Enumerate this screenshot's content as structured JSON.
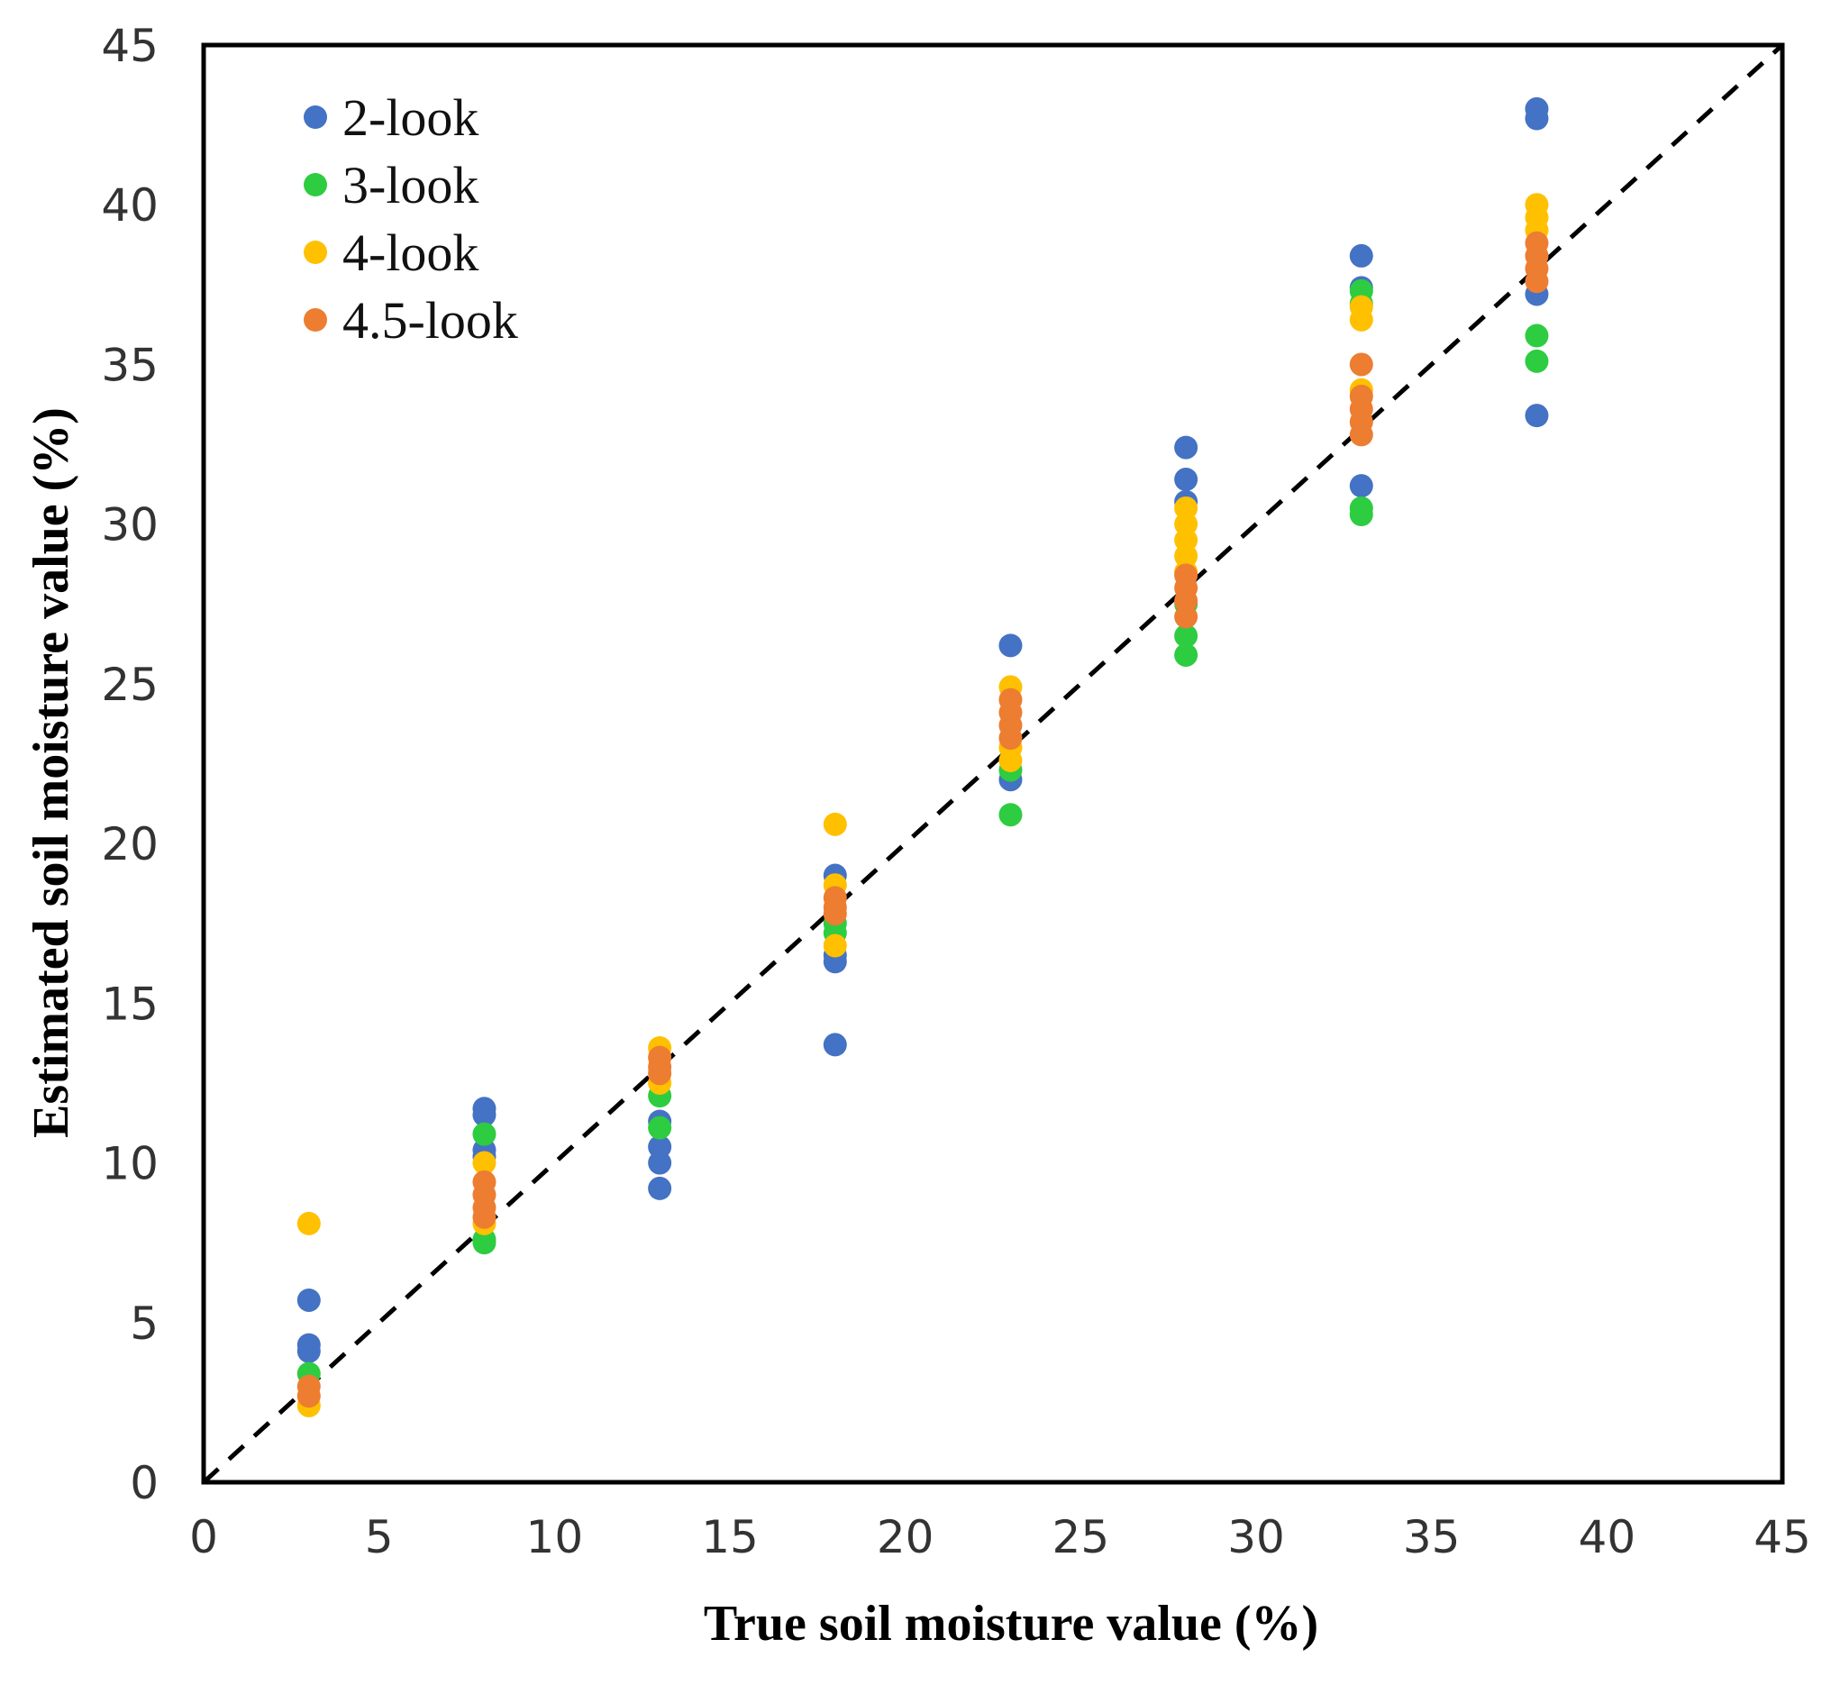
{
  "chart_data": {
    "type": "scatter",
    "title": "",
    "xlabel": "True soil moisture value (%)",
    "ylabel": "Estimated soil moisture value (%)",
    "xlim": [
      0,
      45
    ],
    "ylim": [
      0,
      45
    ],
    "xticks": [
      "0",
      "5",
      "10",
      "15",
      "20",
      "25",
      "30",
      "35",
      "40",
      "45"
    ],
    "yticks": [
      "0",
      "5",
      "10",
      "15",
      "20",
      "25",
      "30",
      "35",
      "40",
      "45"
    ],
    "grid": false,
    "legend_position": "top-left",
    "reference_line": {
      "style": "dashed",
      "color": "#000000",
      "from": [
        0,
        0
      ],
      "to": [
        45,
        45
      ]
    },
    "series": [
      {
        "name": "2-look",
        "color": "#4472C4",
        "points": [
          [
            3,
            5.7
          ],
          [
            3,
            4.3
          ],
          [
            3,
            4.1
          ],
          [
            8,
            11.7
          ],
          [
            8,
            11.5
          ],
          [
            8,
            10.4
          ],
          [
            8,
            10.2
          ],
          [
            13,
            11.3
          ],
          [
            13,
            10.5
          ],
          [
            13,
            10.0
          ],
          [
            13,
            9.2
          ],
          [
            18,
            19.0
          ],
          [
            18,
            16.5
          ],
          [
            18,
            16.3
          ],
          [
            18,
            13.7
          ],
          [
            23,
            26.2
          ],
          [
            23,
            22.0
          ],
          [
            28,
            32.4
          ],
          [
            28,
            31.4
          ],
          [
            28,
            30.7
          ],
          [
            33,
            38.4
          ],
          [
            33,
            37.4
          ],
          [
            33,
            31.2
          ],
          [
            38,
            43.0
          ],
          [
            38,
            42.7
          ],
          [
            38,
            37.2
          ],
          [
            38,
            33.4
          ]
        ]
      },
      {
        "name": "3-look",
        "color": "#2ECC40",
        "points": [
          [
            3,
            3.4
          ],
          [
            8,
            10.9
          ],
          [
            8,
            7.6
          ],
          [
            8,
            7.5
          ],
          [
            13,
            12.1
          ],
          [
            13,
            11.1
          ],
          [
            18,
            17.5
          ],
          [
            18,
            17.2
          ],
          [
            23,
            22.3
          ],
          [
            23,
            20.9
          ],
          [
            28,
            27.5
          ],
          [
            28,
            26.5
          ],
          [
            28,
            25.9
          ],
          [
            33,
            37.3
          ],
          [
            33,
            36.9
          ],
          [
            33,
            30.5
          ],
          [
            33,
            30.3
          ],
          [
            38,
            35.9
          ],
          [
            38,
            35.1
          ]
        ]
      },
      {
        "name": "4-look",
        "color": "#FFC000",
        "points": [
          [
            3,
            8.1
          ],
          [
            3,
            2.4
          ],
          [
            8,
            10.0
          ],
          [
            8,
            8.1
          ],
          [
            13,
            13.6
          ],
          [
            13,
            12.5
          ],
          [
            18,
            20.6
          ],
          [
            18,
            18.7
          ],
          [
            18,
            16.8
          ],
          [
            23,
            24.9
          ],
          [
            23,
            23.0
          ],
          [
            23,
            22.6
          ],
          [
            28,
            30.5
          ],
          [
            28,
            30.0
          ],
          [
            28,
            29.5
          ],
          [
            28,
            29.0
          ],
          [
            28,
            28.5
          ],
          [
            33,
            36.8
          ],
          [
            33,
            36.4
          ],
          [
            33,
            34.2
          ],
          [
            38,
            40.0
          ],
          [
            38,
            39.6
          ],
          [
            38,
            39.2
          ]
        ]
      },
      {
        "name": "4.5-look",
        "color": "#ED7D31",
        "points": [
          [
            3,
            3.0
          ],
          [
            3,
            2.7
          ],
          [
            8,
            9.4
          ],
          [
            8,
            9.0
          ],
          [
            8,
            8.6
          ],
          [
            8,
            8.3
          ],
          [
            13,
            13.3
          ],
          [
            13,
            13.0
          ],
          [
            13,
            12.8
          ],
          [
            18,
            18.3
          ],
          [
            18,
            18.0
          ],
          [
            18,
            17.8
          ],
          [
            23,
            24.5
          ],
          [
            23,
            24.1
          ],
          [
            23,
            23.7
          ],
          [
            23,
            23.3
          ],
          [
            28,
            28.4
          ],
          [
            28,
            28.0
          ],
          [
            28,
            27.6
          ],
          [
            28,
            27.1
          ],
          [
            33,
            35.0
          ],
          [
            33,
            34.0
          ],
          [
            33,
            33.6
          ],
          [
            33,
            33.2
          ],
          [
            33,
            32.8
          ],
          [
            38,
            38.8
          ],
          [
            38,
            38.4
          ],
          [
            38,
            38.0
          ],
          [
            38,
            37.6
          ]
        ]
      }
    ]
  }
}
